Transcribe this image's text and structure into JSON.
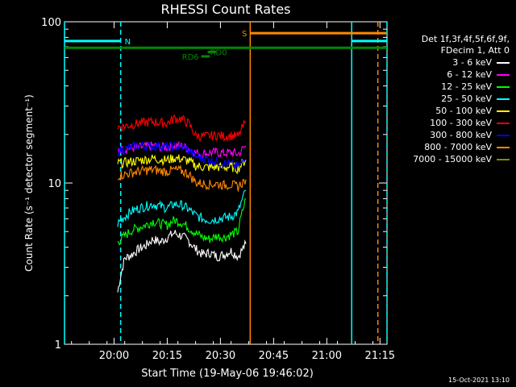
{
  "chart_data": {
    "type": "line",
    "title": "RHESSI Count Rates",
    "xlabel": "Start Time (19-May-06 19:46:02)",
    "ylabel": "Count Rate (s⁻¹ detector segment⁻¹)",
    "yscale": "log",
    "ylim": [
      1,
      100
    ],
    "xlim_minutes": [
      19.767,
      21.283
    ],
    "x_ticks": [
      "20:00",
      "20:15",
      "20:30",
      "20:45",
      "21:00",
      "21:15"
    ],
    "y_ticks": [
      "1",
      "10",
      "100"
    ],
    "x_tick_hours": [
      20.0,
      20.25,
      20.5,
      20.75,
      21.0,
      21.25
    ],
    "y_tick_values": [
      1,
      10,
      100
    ],
    "legend_header": [
      "Det 1f,3f,4f,5f,6f,9f,",
      "FDecim 1, Att 0"
    ],
    "series": [
      {
        "name": "3 - 6 keV",
        "color": "#000000",
        "values": [
          2.1,
          3.4,
          3.6,
          3.9,
          4.1,
          4.5,
          4.3,
          4.6,
          4.9,
          4.7,
          4.4,
          3.9,
          3.6,
          3.7,
          3.5,
          3.6,
          3.8,
          3.5,
          4.2
        ]
      },
      {
        "name": "6 - 12 keV",
        "color": "#ff00ff",
        "values": [
          16.0,
          16.2,
          16.5,
          16.6,
          16.8,
          17.0,
          16.8,
          16.7,
          17.2,
          17.0,
          16.4,
          15.4,
          15.2,
          15.4,
          15.5,
          15.3,
          15.5,
          15.1,
          17.0
        ]
      },
      {
        "name": "12 - 25 keV",
        "color": "#00ff00",
        "values": [
          4.3,
          4.7,
          5.1,
          5.3,
          5.5,
          5.8,
          5.6,
          5.5,
          5.9,
          5.7,
          5.3,
          4.9,
          4.6,
          4.5,
          4.7,
          4.6,
          4.8,
          5.0,
          8.0
        ]
      },
      {
        "name": "25 - 50 keV",
        "color": "#00ffff",
        "values": [
          5.6,
          6.2,
          6.7,
          7.0,
          7.2,
          7.4,
          7.2,
          7.0,
          7.4,
          7.3,
          6.9,
          6.3,
          6.0,
          5.9,
          6.0,
          6.1,
          6.2,
          6.6,
          9.0
        ]
      },
      {
        "name": "50 - 100 keV",
        "color": "#ffff00",
        "values": [
          13.3,
          13.4,
          13.6,
          13.8,
          14.0,
          14.2,
          14.0,
          13.9,
          14.3,
          14.1,
          13.7,
          12.8,
          12.6,
          12.5,
          12.6,
          12.5,
          12.6,
          12.3,
          14.0
        ]
      },
      {
        "name": "100 - 300 keV",
        "color": "#ff0000",
        "values": [
          22.2,
          22.6,
          23.0,
          23.5,
          23.8,
          24.0,
          23.7,
          23.5,
          25.2,
          25.0,
          23.4,
          19.7,
          19.5,
          19.6,
          19.8,
          19.5,
          19.7,
          19.4,
          24.0
        ]
      },
      {
        "name": "300 - 800 keV",
        "color": "#0000ff",
        "values": [
          15.8,
          16.2,
          16.8,
          17.1,
          17.0,
          16.9,
          17.0,
          16.8,
          16.9,
          16.7,
          16.1,
          14.6,
          14.3,
          14.0,
          13.6,
          13.3,
          13.1,
          12.6,
          14.0
        ]
      },
      {
        "name": "800 - 7000 keV",
        "color": "#ff8800",
        "values": [
          11.1,
          11.3,
          11.6,
          11.8,
          12.0,
          12.1,
          11.9,
          11.8,
          12.1,
          11.9,
          11.4,
          10.1,
          9.9,
          9.8,
          9.9,
          9.7,
          9.8,
          9.5,
          10.5
        ]
      },
      {
        "name": "7000 - 15000 keV",
        "color": "#888800",
        "values": []
      }
    ],
    "x_hours": [
      20.017,
      20.05,
      20.083,
      20.117,
      20.15,
      20.183,
      20.217,
      20.25,
      20.283,
      20.317,
      20.35,
      20.383,
      20.417,
      20.45,
      20.483,
      20.517,
      20.55,
      20.583,
      20.62
    ],
    "annotations": {
      "flags": [
        {
          "label": "N",
          "color": "#00ffff",
          "y": 76,
          "x_start": 19.767,
          "x_end": 20.031
        },
        {
          "label": "",
          "color": "#00ffff",
          "y": 76,
          "x_start": 21.117,
          "x_end": 21.283
        },
        {
          "label": "S",
          "color": "#ff8800",
          "y": 85,
          "x_start": 20.64,
          "x_end": 21.28
        },
        {
          "label": "",
          "color": "#008800",
          "y": 69,
          "x_start": 19.767,
          "x_end": 21.283
        },
        {
          "label": "RD0",
          "color": "#008800",
          "y": 65,
          "x_start": 20.44,
          "x_end": 20.48
        },
        {
          "label": "RD6",
          "color": "#008800",
          "y": 61,
          "x_start": 20.41,
          "x_end": 20.45
        }
      ],
      "vlines": [
        {
          "x": 19.767,
          "color": "#00ffff",
          "style": "solid"
        },
        {
          "x": 20.031,
          "color": "#00ffff",
          "style": "dashed"
        },
        {
          "x": 20.64,
          "color": "#ff8800",
          "style": "solid"
        },
        {
          "x": 21.117,
          "color": "#00ffff",
          "style": "solid"
        },
        {
          "x": 21.24,
          "color": "#ff8800",
          "style": "dashed"
        },
        {
          "x": 21.283,
          "color": "#00ffff",
          "style": "dashed"
        }
      ]
    }
  },
  "timestamp": "15-Oct-2021 13:10"
}
